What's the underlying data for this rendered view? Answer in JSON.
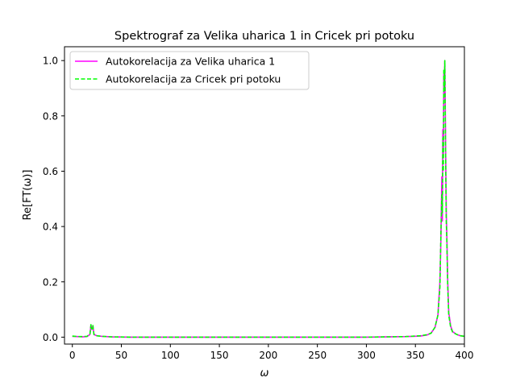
{
  "chart_data": {
    "type": "line",
    "title": "Spektrograf za Velika uharica 1 in Cricek pri potoku",
    "xlabel": "ω",
    "ylabel": "Re[FT(ω)]",
    "xlim": [
      -8,
      400
    ],
    "ylim": [
      -0.025,
      1.05
    ],
    "x_ticks": [
      0,
      50,
      100,
      150,
      200,
      250,
      300,
      350,
      400
    ],
    "y_ticks": [
      0.0,
      0.2,
      0.4,
      0.6,
      0.8,
      1.0
    ],
    "x_tick_labels": [
      "0",
      "50",
      "100",
      "150",
      "200",
      "250",
      "300",
      "350",
      "400"
    ],
    "y_tick_labels": [
      "0.0",
      "0.2",
      "0.4",
      "0.6",
      "0.8",
      "1.0"
    ],
    "grid": false,
    "legend": "top-left",
    "series": [
      {
        "name": "Autokorelacija za Velika uharica 1",
        "color": "#ff00ff",
        "style": "solid",
        "x": [
          0,
          5,
          10,
          15,
          18,
          19,
          20,
          21,
          22,
          23,
          25,
          30,
          40,
          60,
          100,
          150,
          200,
          250,
          300,
          340,
          355,
          362,
          366,
          370,
          373,
          375,
          376,
          377,
          377.5,
          378,
          378.5,
          379,
          379.5,
          380,
          380.5,
          381,
          381.5,
          382,
          383,
          384,
          386,
          388,
          392,
          396,
          400
        ],
        "y": [
          0.003,
          0.002,
          0.001,
          0.002,
          0.01,
          0.044,
          0.03,
          0.04,
          0.012,
          0.008,
          0.005,
          0.003,
          0.001,
          0.0,
          0.0,
          0.0,
          0.0,
          0.0,
          0.0,
          0.002,
          0.004,
          0.008,
          0.015,
          0.035,
          0.08,
          0.2,
          0.35,
          0.58,
          0.42,
          0.75,
          0.65,
          0.95,
          0.88,
          1.0,
          0.82,
          0.62,
          0.45,
          0.38,
          0.2,
          0.09,
          0.04,
          0.02,
          0.01,
          0.005,
          0.003
        ]
      },
      {
        "name": "Autokorelacija za Cricek pri potoku",
        "color": "#00ff00",
        "style": "dashed",
        "x": [
          0,
          5,
          10,
          15,
          18,
          19,
          20,
          21,
          22,
          23,
          25,
          30,
          40,
          60,
          100,
          150,
          200,
          250,
          300,
          340,
          355,
          362,
          366,
          370,
          373,
          375,
          376,
          377,
          377.5,
          378,
          378.5,
          379,
          379.5,
          380,
          380.5,
          381,
          381.5,
          382,
          383,
          384,
          386,
          388,
          392,
          396,
          400
        ],
        "y": [
          0.004,
          0.002,
          0.002,
          0.003,
          0.012,
          0.045,
          0.028,
          0.042,
          0.01,
          0.007,
          0.005,
          0.003,
          0.001,
          0.0,
          0.0,
          0.0,
          0.0,
          0.0,
          0.0,
          0.002,
          0.005,
          0.009,
          0.014,
          0.036,
          0.08,
          0.18,
          0.37,
          0.52,
          0.45,
          0.72,
          0.6,
          0.97,
          0.9,
          1.0,
          0.78,
          0.6,
          0.42,
          0.36,
          0.18,
          0.08,
          0.035,
          0.018,
          0.01,
          0.005,
          0.003
        ]
      }
    ]
  }
}
